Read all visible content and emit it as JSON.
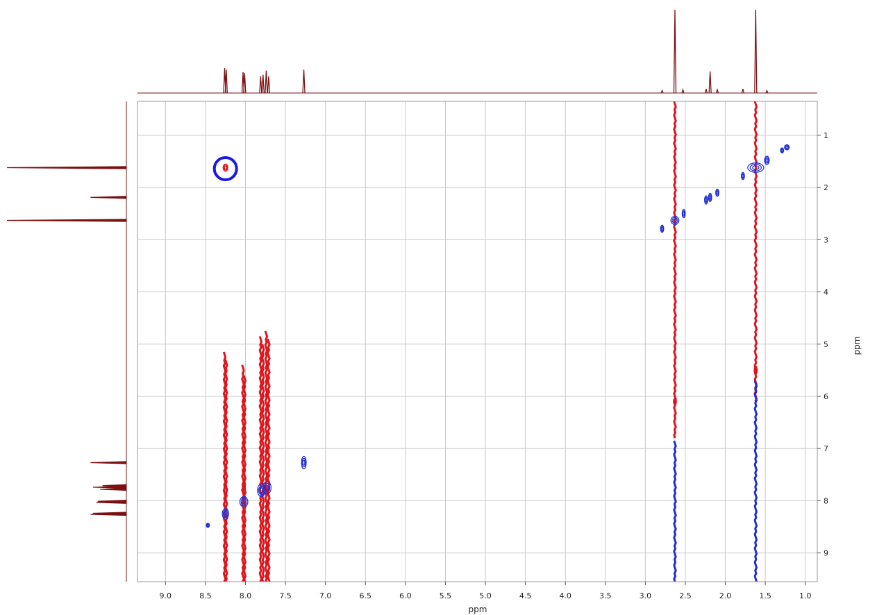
{
  "chart_data": {
    "type": "2D NMR contour plot (COSY/NOESY-like) with 1D projections",
    "title": "",
    "xlabel": "ppm",
    "ylabel": "ppm",
    "xlim": [
      9.35,
      0.85
    ],
    "ylim": [
      0.35,
      9.55
    ],
    "x_reversed": true,
    "y_reversed": true,
    "grid": true,
    "x_ticks": [
      "9.0",
      "8.5",
      "8.0",
      "7.5",
      "7.0",
      "6.5",
      "6.0",
      "5.5",
      "5.0",
      "4.5",
      "4.0",
      "3.5",
      "3.0",
      "2.5",
      "2.0",
      "1.5",
      "1.0"
    ],
    "y_ticks": [
      "1",
      "2",
      "3",
      "4",
      "5",
      "6",
      "7",
      "8",
      "9"
    ],
    "colors": {
      "positive_contour": "#1f2fd6",
      "negative_contour": "#e0141c",
      "projection": "#7a1010",
      "grid": "#c8c8c8",
      "highlight_circle": "#1a1ae0"
    },
    "projection_peaks_top": [
      {
        "ppm": 8.26,
        "height": 0.3
      },
      {
        "ppm": 8.24,
        "height": 0.28
      },
      {
        "ppm": 8.03,
        "height": 0.25
      },
      {
        "ppm": 8.01,
        "height": 0.24
      },
      {
        "ppm": 7.81,
        "height": 0.2
      },
      {
        "ppm": 7.78,
        "height": 0.22
      },
      {
        "ppm": 7.74,
        "height": 0.27
      },
      {
        "ppm": 7.71,
        "height": 0.2
      },
      {
        "ppm": 7.27,
        "height": 0.28
      },
      {
        "ppm": 2.79,
        "height": 0.03
      },
      {
        "ppm": 2.63,
        "height": 1.0
      },
      {
        "ppm": 2.53,
        "height": 0.04
      },
      {
        "ppm": 2.24,
        "height": 0.05
      },
      {
        "ppm": 2.19,
        "height": 0.26
      },
      {
        "ppm": 2.1,
        "height": 0.04
      },
      {
        "ppm": 1.78,
        "height": 0.05
      },
      {
        "ppm": 1.62,
        "height": 1.0
      },
      {
        "ppm": 1.48,
        "height": 0.03
      }
    ],
    "projection_peaks_left": [
      {
        "ppm": 1.62,
        "height": 1.0
      },
      {
        "ppm": 2.19,
        "height": 0.3
      },
      {
        "ppm": 2.63,
        "height": 1.0
      },
      {
        "ppm": 7.27,
        "height": 0.3
      },
      {
        "ppm": 7.71,
        "height": 0.2
      },
      {
        "ppm": 7.74,
        "height": 0.28
      },
      {
        "ppm": 7.78,
        "height": 0.22
      },
      {
        "ppm": 8.01,
        "height": 0.24
      },
      {
        "ppm": 8.03,
        "height": 0.25
      },
      {
        "ppm": 8.24,
        "height": 0.28
      },
      {
        "ppm": 8.26,
        "height": 0.3
      }
    ],
    "negative_streaks": [
      {
        "x": 8.26,
        "y_from": 5.15,
        "y_to": 9.55
      },
      {
        "x": 8.24,
        "y_from": 5.3,
        "y_to": 9.55
      },
      {
        "x": 8.03,
        "y_from": 5.4,
        "y_to": 9.55
      },
      {
        "x": 8.01,
        "y_from": 5.6,
        "y_to": 9.55
      },
      {
        "x": 7.81,
        "y_from": 4.85,
        "y_to": 9.55
      },
      {
        "x": 7.78,
        "y_from": 5.0,
        "y_to": 9.55
      },
      {
        "x": 7.74,
        "y_from": 4.75,
        "y_to": 9.55
      },
      {
        "x": 7.71,
        "y_from": 4.9,
        "y_to": 9.55
      },
      {
        "x": 2.63,
        "y_from": 0.35,
        "y_to": 6.8
      },
      {
        "x": 1.62,
        "y_from": 0.35,
        "y_to": 6.1
      }
    ],
    "positive_streaks": [
      {
        "x": 2.63,
        "y_from": 6.85,
        "y_to": 9.55
      },
      {
        "x": 1.62,
        "y_from": 5.7,
        "y_to": 9.55
      }
    ],
    "positive_peaks": [
      {
        "x": 8.25,
        "y": 8.25,
        "rx": 0.04,
        "ry": 0.1
      },
      {
        "x": 8.02,
        "y": 8.02,
        "rx": 0.05,
        "ry": 0.1
      },
      {
        "x": 7.8,
        "y": 7.8,
        "rx": 0.05,
        "ry": 0.12
      },
      {
        "x": 7.73,
        "y": 7.75,
        "rx": 0.05,
        "ry": 0.12
      },
      {
        "x": 7.27,
        "y": 7.27,
        "rx": 0.03,
        "ry": 0.12
      },
      {
        "x": 8.47,
        "y": 8.47,
        "rx": 0.02,
        "ry": 0.04
      },
      {
        "x": 2.79,
        "y": 2.79,
        "rx": 0.02,
        "ry": 0.07
      },
      {
        "x": 2.63,
        "y": 2.63,
        "rx": 0.05,
        "ry": 0.08
      },
      {
        "x": 2.52,
        "y": 2.5,
        "rx": 0.02,
        "ry": 0.08
      },
      {
        "x": 2.24,
        "y": 2.24,
        "rx": 0.02,
        "ry": 0.08
      },
      {
        "x": 2.19,
        "y": 2.19,
        "rx": 0.02,
        "ry": 0.08
      },
      {
        "x": 2.1,
        "y": 2.1,
        "rx": 0.02,
        "ry": 0.07
      },
      {
        "x": 1.78,
        "y": 1.78,
        "rx": 0.02,
        "ry": 0.07
      },
      {
        "x": 1.62,
        "y": 1.62,
        "rx": 0.1,
        "ry": 0.09
      },
      {
        "x": 1.48,
        "y": 1.48,
        "rx": 0.03,
        "ry": 0.08
      },
      {
        "x": 1.29,
        "y": 1.29,
        "rx": 0.02,
        "ry": 0.05
      },
      {
        "x": 1.23,
        "y": 1.23,
        "rx": 0.03,
        "ry": 0.05
      }
    ],
    "negative_peaks": [
      {
        "x": 8.25,
        "y": 1.62,
        "rx": 0.03,
        "ry": 0.07
      },
      {
        "x": 8.25,
        "y": 7.8,
        "rx": 0.02,
        "ry": 0.14
      },
      {
        "x": 8.02,
        "y": 7.75,
        "rx": 0.02,
        "ry": 0.14
      },
      {
        "x": 2.63,
        "y": 6.1,
        "rx": 0.02,
        "ry": 0.06
      },
      {
        "x": 1.62,
        "y": 5.5,
        "rx": 0.02,
        "ry": 0.08
      }
    ],
    "annotations": [
      {
        "type": "circle",
        "x": 8.25,
        "y": 1.64,
        "label": ""
      }
    ]
  }
}
